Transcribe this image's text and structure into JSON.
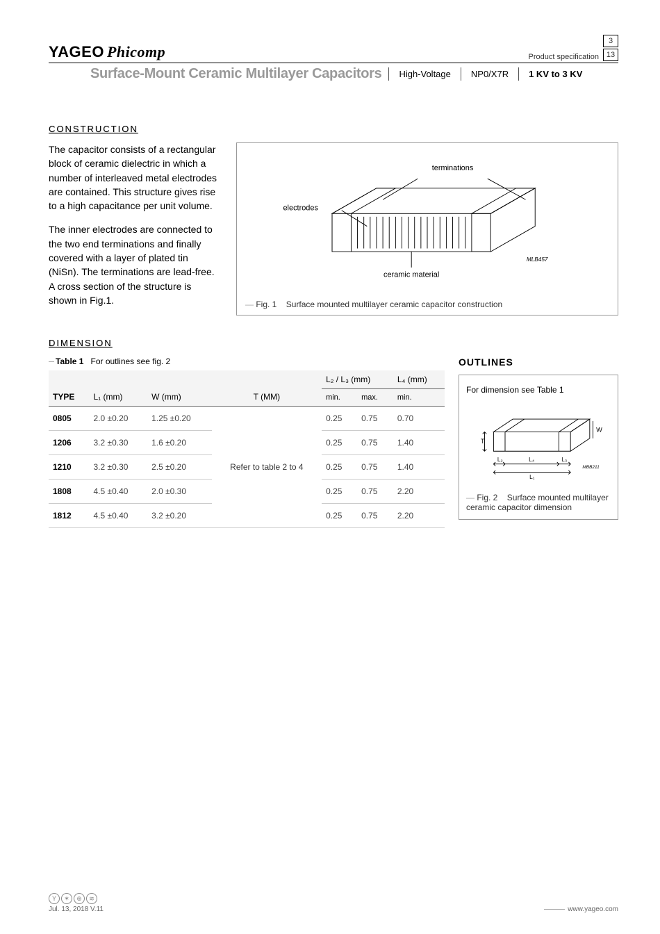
{
  "header": {
    "brand1": "YAGEO",
    "brand2": "Phicomp",
    "spec_label": "Product specification",
    "page_current": "3",
    "page_total": "13",
    "title": "Surface-Mount Ceramic Multilayer Capacitors",
    "tag1": "High-Voltage",
    "tag2": "NP0/X7R",
    "tag3": "1 KV to 3 KV"
  },
  "sections": {
    "construction": "CONSTRUCTION",
    "dimension": "DIMENSION",
    "outlines": "OUTLINES"
  },
  "construction": {
    "p1": "The capacitor consists of a rectangular block of ceramic dielectric in which a number of interleaved metal electrodes are contained. This structure gives rise to a high capacitance per unit volume.",
    "p2": "The inner electrodes are connected to the two end terminations and finally covered with a layer of plated tin (NiSn). The terminations are lead-free. A cross section of the structure is shown in Fig.1."
  },
  "fig1": {
    "label_terminations": "terminations",
    "label_electrodes": "electrodes",
    "label_ceramic": "ceramic material",
    "code": "MLB457",
    "caption_prefix": "Fig. 1",
    "caption_text": "Surface mounted multilayer ceramic capacitor construction"
  },
  "fig2": {
    "note": "For dimension see Table 1",
    "code": "MBB211",
    "caption_prefix": "Fig. 2",
    "caption_text": "Surface mounted multilayer ceramic capacitor dimension",
    "L1": "L₁",
    "L2": "L₂",
    "L3": "L₃",
    "L4": "L₄",
    "T": "T",
    "W": "W"
  },
  "table1": {
    "caption_prefix": "Table 1",
    "caption_text": "For outlines see fig. 2",
    "headers": {
      "type": "TYPE",
      "L1": "L₁ (mm)",
      "W": "W (mm)",
      "T": "T (MM)",
      "L23": "L₂ / L₃ (mm)",
      "L4": "L₄ (mm)",
      "min": "min.",
      "max": "max.",
      "min2": "min."
    },
    "merged_T": "Refer to table 2 to 4",
    "rows": [
      {
        "type": "0805",
        "L1": "2.0 ±0.20",
        "W": "1.25 ±0.20",
        "L2min": "0.25",
        "L2max": "0.75",
        "L4": "0.70"
      },
      {
        "type": "1206",
        "L1": "3.2 ±0.30",
        "W": "1.6 ±0.20",
        "L2min": "0.25",
        "L2max": "0.75",
        "L4": "1.40"
      },
      {
        "type": "1210",
        "L1": "3.2 ±0.30",
        "W": "2.5 ±0.20",
        "L2min": "0.25",
        "L2max": "0.75",
        "L4": "1.40"
      },
      {
        "type": "1808",
        "L1": "4.5 ±0.40",
        "W": "2.0 ±0.30",
        "L2min": "0.25",
        "L2max": "0.75",
        "L4": "2.20"
      },
      {
        "type": "1812",
        "L1": "4.5 ±0.40",
        "W": "3.2 ±0.20",
        "L2min": "0.25",
        "L2max": "0.75",
        "L4": "2.20"
      }
    ]
  },
  "footer": {
    "date": "Jul. 13, 2018 V.11",
    "url": "www.yageo.com"
  },
  "colors": {
    "gray_title": "#999999",
    "border": "#999999"
  }
}
